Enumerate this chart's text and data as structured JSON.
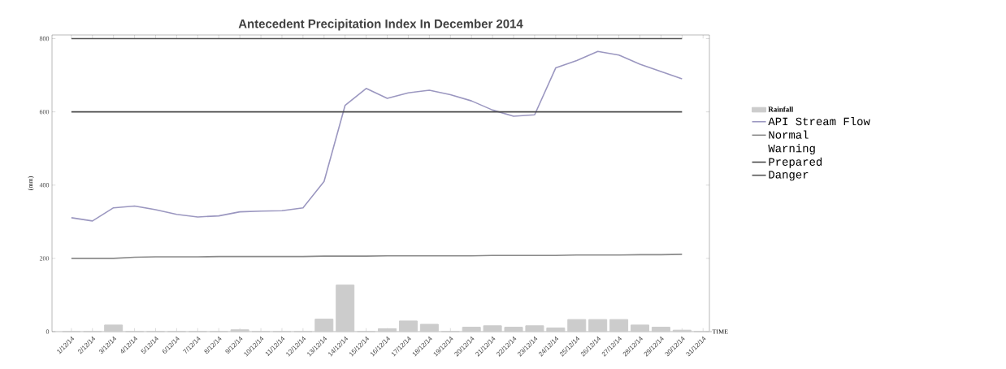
{
  "chart_data": {
    "type": "bar",
    "title": "Antecedent Precipitation Index In December 2014",
    "xlabel": "TIME",
    "ylabel": "(mm)",
    "categories": [
      "1/12/14",
      "2/12/14",
      "3/12/14",
      "4/12/14",
      "5/12/14",
      "6/12/14",
      "7/12/14",
      "8/12/14",
      "9/12/14",
      "10/12/14",
      "11/12/14",
      "12/12/14",
      "13/12/14",
      "14/12/14",
      "15/12/14",
      "16/12/14",
      "17/12/14",
      "18/12/14",
      "19/12/14",
      "20/12/14",
      "21/12/14",
      "22/12/14",
      "23/12/14",
      "24/12/14",
      "25/12/14",
      "26/12/14",
      "27/12/14",
      "28/12/14",
      "29/12/14",
      "30/12/14",
      "31/12/14"
    ],
    "series": [
      {
        "name": "Rainfall",
        "color": "#cccccc",
        "values": [
          0,
          0,
          18,
          0,
          0,
          0,
          0,
          0,
          5,
          0,
          0,
          0,
          34,
          127,
          0,
          8,
          29,
          20,
          0,
          12,
          16,
          12,
          16,
          10,
          33,
          33,
          33,
          18,
          12,
          4,
          0
        ]
      },
      {
        "name": "API Stream Flow",
        "type": "line",
        "color": "#9b97c0",
        "values": [
          311,
          302,
          338,
          343,
          333,
          320,
          313,
          316,
          327,
          329,
          330,
          338,
          410,
          618,
          664,
          637,
          652,
          659,
          647,
          630,
          605,
          588,
          592,
          720,
          740,
          765,
          755,
          730,
          710,
          690,
          null
        ]
      },
      {
        "name": "Normal",
        "type": "line",
        "color": "#8a8a8a",
        "values": [
          200,
          200,
          200,
          203,
          204,
          204,
          204,
          205,
          205,
          205,
          205,
          205,
          206,
          206,
          206,
          207,
          207,
          207,
          207,
          207,
          208,
          208,
          208,
          208,
          209,
          209,
          209,
          210,
          210,
          211,
          null
        ]
      },
      {
        "name": "Warning",
        "type": "line",
        "values": [
          null,
          null,
          null,
          null,
          null,
          null,
          null,
          null,
          null,
          null,
          null,
          null,
          null,
          null,
          null,
          null,
          null,
          null,
          null,
          null,
          null,
          null,
          null,
          null,
          null,
          null,
          null,
          null,
          null,
          null,
          null
        ]
      },
      {
        "name": "Prepared",
        "type": "line",
        "color": "#4a4a4a",
        "values": [
          600,
          600,
          600,
          600,
          600,
          600,
          600,
          600,
          600,
          600,
          600,
          600,
          600,
          600,
          600,
          600,
          600,
          600,
          600,
          600,
          600,
          600,
          600,
          600,
          600,
          600,
          600,
          600,
          600,
          600,
          null
        ]
      },
      {
        "name": "Danger",
        "type": "line",
        "color": "#555555",
        "values": [
          800,
          800,
          800,
          800,
          800,
          800,
          800,
          800,
          800,
          800,
          800,
          800,
          800,
          800,
          800,
          800,
          800,
          800,
          800,
          800,
          800,
          800,
          800,
          800,
          800,
          800,
          800,
          800,
          800,
          800,
          null
        ]
      }
    ],
    "ylim": [
      0,
      810
    ],
    "yticks": [
      0,
      200,
      400,
      600,
      800
    ],
    "legend": "right",
    "marker": "none",
    "line_style": "solid"
  }
}
